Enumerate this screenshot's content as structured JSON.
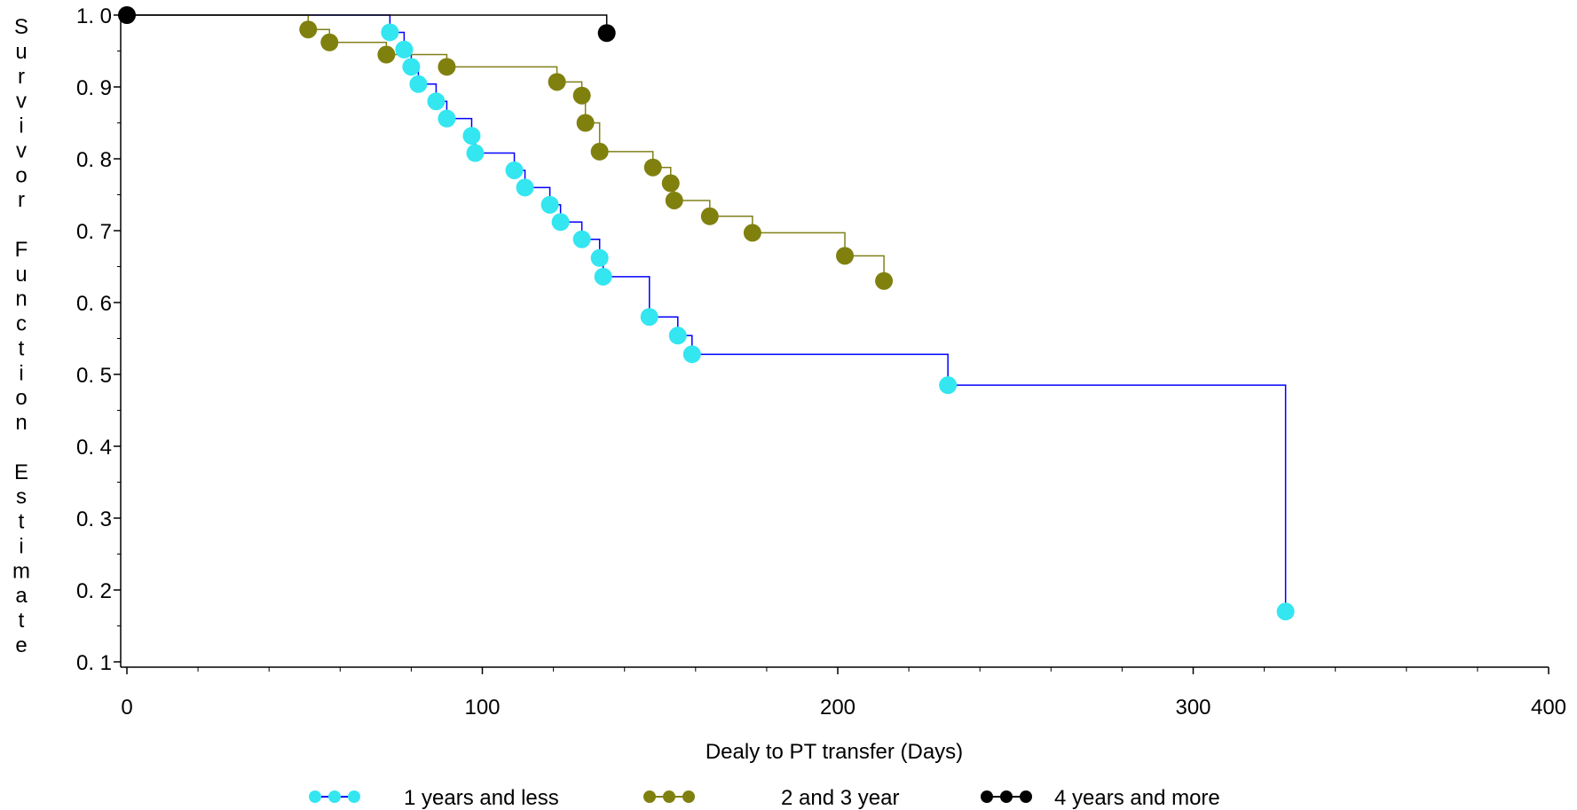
{
  "chart_data": {
    "type": "line",
    "subtype": "step",
    "title": "",
    "xlabel": "Dealy to PT transfer (Days)",
    "ylabel": "Survivor Function Estimate",
    "xlim": [
      0,
      400
    ],
    "ylim": [
      0.1,
      1.0
    ],
    "xticks": [
      0,
      100,
      200,
      300,
      400
    ],
    "xtick_labels": [
      "0",
      "100",
      "200",
      "300",
      "400"
    ],
    "yticks": [
      0.1,
      0.2,
      0.3,
      0.4,
      0.5,
      0.6,
      0.7,
      0.8,
      0.9,
      1.0
    ],
    "ytick_labels": [
      "0. 1",
      "0. 2",
      "0. 3",
      "0. 4",
      "0. 5",
      "0. 6",
      "0. 7",
      "0. 8",
      "0. 9",
      "1. 0"
    ],
    "grid": false,
    "legend_position": "bottom",
    "series": [
      {
        "name": "1 years and less",
        "line_color": "#0000ff",
        "marker_color": "#33e6f0",
        "x": [
          0,
          74,
          78,
          80,
          82,
          87,
          90,
          97,
          98,
          109,
          112,
          119,
          122,
          128,
          133,
          134,
          147,
          155,
          159,
          231,
          326
        ],
        "y": [
          1.0,
          0.976,
          0.952,
          0.928,
          0.904,
          0.88,
          0.856,
          0.832,
          0.808,
          0.784,
          0.76,
          0.736,
          0.712,
          0.688,
          0.662,
          0.636,
          0.58,
          0.554,
          0.528,
          0.485,
          0.17
        ],
        "marked": [
          false,
          true,
          true,
          true,
          true,
          true,
          true,
          true,
          true,
          true,
          true,
          true,
          true,
          true,
          true,
          true,
          true,
          true,
          true,
          true,
          true
        ]
      },
      {
        "name": "2 and 3 year",
        "line_color": "#80801a",
        "marker_color": "#80800f",
        "x": [
          0,
          51,
          57,
          73,
          90,
          121,
          128,
          129,
          133,
          148,
          153,
          154,
          164,
          176,
          202,
          213
        ],
        "y": [
          1.0,
          0.98,
          0.962,
          0.945,
          0.928,
          0.907,
          0.888,
          0.85,
          0.81,
          0.788,
          0.766,
          0.742,
          0.72,
          0.697,
          0.665,
          0.63
        ],
        "marked": [
          false,
          true,
          true,
          true,
          true,
          true,
          true,
          true,
          true,
          true,
          true,
          true,
          true,
          true,
          true,
          true
        ]
      },
      {
        "name": "4 years and more",
        "line_color": "#000000",
        "marker_color": "#000000",
        "x": [
          0,
          135
        ],
        "y": [
          1.0,
          0.975
        ],
        "marked": [
          true,
          true
        ],
        "censored_only": true
      }
    ]
  }
}
